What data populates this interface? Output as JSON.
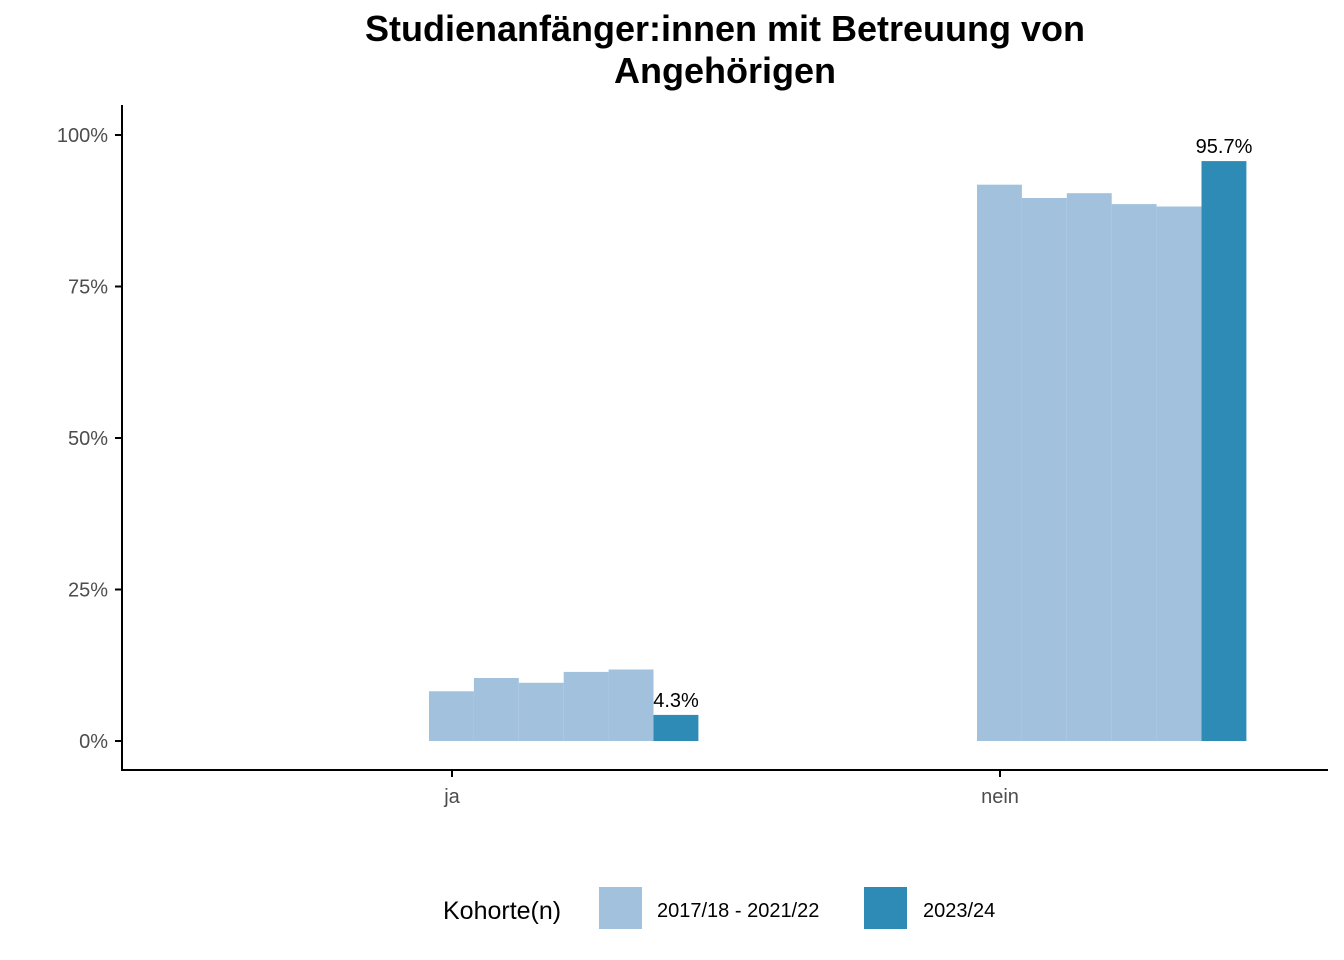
{
  "chart_data": {
    "type": "bar",
    "title_lines": [
      "Studienanfänger:innen mit Betreuung von",
      "Angehörigen"
    ],
    "xlabel": "",
    "ylabel": "",
    "categories": [
      "ja",
      "nein"
    ],
    "ylim": [
      0,
      1.05
    ],
    "yticks": [
      0,
      0.25,
      0.5,
      0.75,
      1.0
    ],
    "ytick_labels": [
      "0%",
      "25%",
      "50%",
      "75%",
      "100%"
    ],
    "grid": false,
    "legend": {
      "position": "bottom",
      "title": "Kohorte(n)",
      "entries": [
        {
          "label": "2017/18 - 2021/22",
          "color": "#a1c1dd"
        },
        {
          "label": "2023/24",
          "color": "#2e8bb6"
        }
      ]
    },
    "series": [
      {
        "group": "2017/18 - 2021/22",
        "color": "#a1c1dd",
        "values": [
          0.082,
          0.918
        ]
      },
      {
        "group": "2017/18 - 2021/22",
        "color": "#a1c1dd",
        "values": [
          0.104,
          0.896
        ]
      },
      {
        "group": "2017/18 - 2021/22",
        "color": "#a1c1dd",
        "values": [
          0.096,
          0.904
        ]
      },
      {
        "group": "2017/18 - 2021/22",
        "color": "#a1c1dd",
        "values": [
          0.114,
          0.886
        ]
      },
      {
        "group": "2017/18 - 2021/22",
        "color": "#a1c1dd",
        "values": [
          0.118,
          0.882
        ]
      },
      {
        "group": "2023/24",
        "color": "#2e8bb6",
        "values": [
          0.043,
          0.957
        ],
        "labels": [
          "4.3%",
          "95.7%"
        ]
      }
    ]
  }
}
